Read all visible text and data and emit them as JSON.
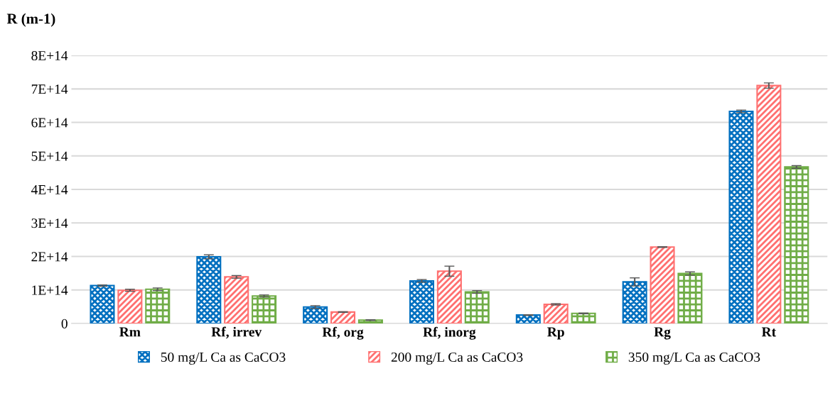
{
  "chart_data": {
    "type": "bar",
    "ylabel": "R (m-1)",
    "categories": [
      "Rm",
      "Rf, irrev",
      "Rf, org",
      "Rf, inorg",
      "Rp",
      "Rg",
      "Rt"
    ],
    "series": [
      {
        "name": "50 mg/L Ca as CaCO3",
        "color": "#0070c0",
        "values": [
          113000000000000.0,
          199000000000000.0,
          49000000000000.0,
          127000000000000.0,
          25000000000000.0,
          124000000000000.0,
          633000000000000.0
        ],
        "errors": [
          2000000000000.0,
          6000000000000.0,
          4000000000000.0,
          4000000000000.0,
          1000000000000.0,
          12000000000000.0,
          4000000000000.0
        ]
      },
      {
        "name": "200 mg/L Ca as CaCO3",
        "color": "#ff7070",
        "values": [
          99000000000000.0,
          139000000000000.0,
          34000000000000.0,
          156000000000000.0,
          57000000000000.0,
          228000000000000.0,
          710000000000000.0
        ],
        "errors": [
          3000000000000.0,
          4000000000000.0,
          1000000000000.0,
          15000000000000.0,
          2000000000000.0,
          1000000000000.0,
          8000000000000.0
        ]
      },
      {
        "name": "350 mg/L Ca as CaCO3",
        "color": "#70ad47",
        "values": [
          102000000000000.0,
          82000000000000.0,
          10000000000000.0,
          94000000000000.0,
          30000000000000.0,
          149000000000000.0,
          467000000000000.0
        ],
        "errors": [
          4000000000000.0,
          3000000000000.0,
          1000000000000.0,
          4000000000000.0,
          1000000000000.0,
          5000000000000.0,
          4000000000000.0
        ]
      }
    ],
    "ylim": [
      0,
      800000000000000.0
    ],
    "yticks": [
      {
        "value": 0,
        "label": "0"
      },
      {
        "value": 100000000000000.0,
        "label": "1E+14"
      },
      {
        "value": 200000000000000.0,
        "label": "2E+14"
      },
      {
        "value": 300000000000000.0,
        "label": "3E+14"
      },
      {
        "value": 400000000000000.0,
        "label": "4E+14"
      },
      {
        "value": 500000000000000.0,
        "label": "5E+14"
      },
      {
        "value": 600000000000000.0,
        "label": "6E+14"
      },
      {
        "value": 700000000000000.0,
        "label": "7E+14"
      },
      {
        "value": 800000000000000.0,
        "label": "8E+14"
      }
    ],
    "grid": "y",
    "legend": "bottom"
  }
}
